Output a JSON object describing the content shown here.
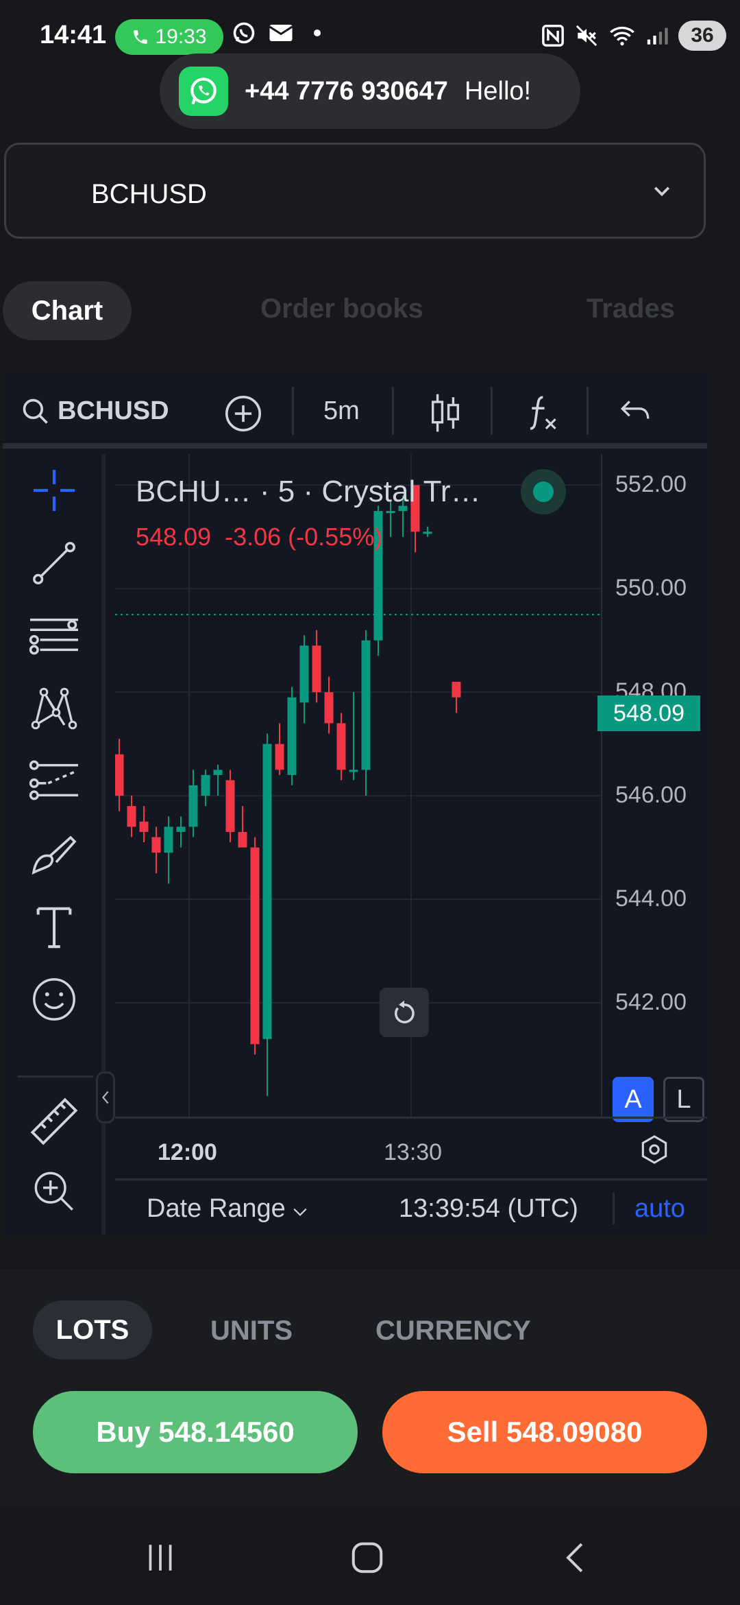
{
  "status_bar": {
    "time": "14:41",
    "call_timer": "19:33",
    "battery": "36",
    "icons_left": [
      "whatsapp-icon",
      "mail-icon",
      "dot-icon"
    ],
    "icons_right": [
      "nfc-icon",
      "mute-icon",
      "wifi-icon",
      "signal-icon"
    ]
  },
  "notification": {
    "app": "whatsapp",
    "sender": "+44 7776 930647",
    "message": "Hello!"
  },
  "symbol_selector": {
    "value": "BCHUSD"
  },
  "tabs": [
    {
      "label": "Chart",
      "active": true
    },
    {
      "label": "Order books",
      "active": false
    },
    {
      "label": "Trades",
      "active": false
    }
  ],
  "chart_toolbar": {
    "symbol": "BCHUSD",
    "interval": "5m",
    "icons": [
      "search-icon",
      "add-compare-icon",
      "candles-icon",
      "indicators-icon",
      "undo-icon"
    ]
  },
  "drawing_tools": [
    "crosshair-icon",
    "trendline-icon",
    "fib-icon",
    "pattern-icon",
    "projection-icon",
    "brush-icon",
    "text-icon",
    "emoji-icon",
    "ruler-icon",
    "zoom-in-icon"
  ],
  "chart": {
    "legend_title": "BCHU… · 5 · Crystal Tr…",
    "last_price": "548.09",
    "change": "-3.06 (-0.55%)",
    "price_tag": "548.09",
    "y_labels": [
      "552.00",
      "550.00",
      "548.00"
    ],
    "x_labels": [
      "12:00",
      "13:30"
    ],
    "auto_scale_label": "A",
    "log_scale_label": "L",
    "date_range_label": "Date Range",
    "clock": "13:39:54 (UTC)",
    "auto_label": "auto",
    "colors": {
      "up": "#089981",
      "down": "#f23645",
      "background": "#131722"
    }
  },
  "chart_data": {
    "type": "candlestick",
    "y_ticks": [
      552,
      550,
      548,
      546,
      544,
      542
    ],
    "y_tick_labels": [
      "552.00",
      "550.00",
      "548.00",
      "546.00",
      "544.00",
      "542.00"
    ],
    "x_tick_labels": [
      "12:00",
      "13:30"
    ],
    "ylim": [
      539.8,
      552.6
    ],
    "last": 548.09,
    "candles": [
      {
        "o": 546.8,
        "h": 547.1,
        "l": 545.7,
        "c": 546.0
      },
      {
        "o": 545.8,
        "h": 546.0,
        "l": 545.2,
        "c": 545.4
      },
      {
        "o": 545.5,
        "h": 545.8,
        "l": 545.1,
        "c": 545.3
      },
      {
        "o": 545.2,
        "h": 545.4,
        "l": 544.5,
        "c": 544.9
      },
      {
        "o": 544.9,
        "h": 545.6,
        "l": 544.3,
        "c": 545.4
      },
      {
        "o": 545.3,
        "h": 545.6,
        "l": 545.0,
        "c": 545.4
      },
      {
        "o": 545.4,
        "h": 546.5,
        "l": 545.2,
        "c": 546.2
      },
      {
        "o": 546.0,
        "h": 546.5,
        "l": 545.8,
        "c": 546.4
      },
      {
        "o": 546.4,
        "h": 546.6,
        "l": 546.0,
        "c": 546.5
      },
      {
        "o": 546.3,
        "h": 546.5,
        "l": 545.1,
        "c": 545.3
      },
      {
        "o": 545.3,
        "h": 545.8,
        "l": 545.0,
        "c": 545.0
      },
      {
        "o": 545.0,
        "h": 545.2,
        "l": 541.0,
        "c": 541.2
      },
      {
        "o": 541.3,
        "h": 547.2,
        "l": 540.2,
        "c": 547.0
      },
      {
        "o": 547.0,
        "h": 547.4,
        "l": 546.4,
        "c": 546.5
      },
      {
        "o": 546.4,
        "h": 548.1,
        "l": 546.2,
        "c": 547.9
      },
      {
        "o": 547.8,
        "h": 549.1,
        "l": 547.4,
        "c": 548.9
      },
      {
        "o": 548.9,
        "h": 549.2,
        "l": 547.8,
        "c": 548.0
      },
      {
        "o": 548.0,
        "h": 548.3,
        "l": 547.2,
        "c": 547.4
      },
      {
        "o": 547.4,
        "h": 547.6,
        "l": 546.3,
        "c": 546.5
      },
      {
        "o": 546.5,
        "h": 548.0,
        "l": 546.3,
        "c": 546.5
      },
      {
        "o": 546.5,
        "h": 549.2,
        "l": 546.0,
        "c": 549.0
      },
      {
        "o": 549.0,
        "h": 551.6,
        "l": 548.7,
        "c": 551.5
      },
      {
        "o": 551.5,
        "h": 551.7,
        "l": 551.0,
        "c": 551.5
      },
      {
        "o": 551.5,
        "h": 551.8,
        "l": 551.0,
        "c": 551.6
      },
      {
        "o": 552.0,
        "h": 552.0,
        "l": 550.7,
        "c": 551.1
      },
      {
        "o": 551.1,
        "h": 551.2,
        "l": 551.0,
        "c": 551.1
      },
      {
        "o": 548.2,
        "h": 548.2,
        "l": 547.6,
        "c": 547.9
      }
    ]
  },
  "units": [
    {
      "label": "LOTS",
      "active": true
    },
    {
      "label": "UNITS",
      "active": false
    },
    {
      "label": "CURRENCY",
      "active": false
    }
  ],
  "trade": {
    "buy_label": "Buy 548.14560",
    "sell_label": "Sell 548.09080",
    "buy_color": "#5cbf7a",
    "sell_color": "#ff6b35"
  },
  "navbar": {
    "icons": [
      "recents-icon",
      "home-icon",
      "back-icon"
    ]
  }
}
